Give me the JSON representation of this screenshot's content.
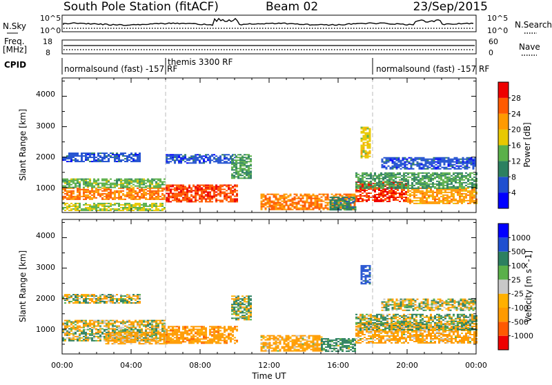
{
  "header": {
    "station": "South Pole Station (fitACF)",
    "beam": "Beam 02",
    "date": "23/Sep/2015"
  },
  "summary": {
    "nsky_label": "N.Sky",
    "nsky_ticks": [
      "10^5",
      "10^0"
    ],
    "nsearch_label": "N.Search",
    "nsearch_ticks": [
      "10^5",
      "10^0"
    ],
    "freq_label": "Freq.",
    "freq_unit": "[MHz]",
    "freq_ticks": [
      "18",
      "8"
    ],
    "nave_label": "Nave",
    "nave_ticks": [
      "60",
      "0"
    ],
    "cpid_label": "CPID",
    "cpid_segments": [
      {
        "label": "normalsound (fast) -157 RF",
        "start": 0,
        "end": 6
      },
      {
        "label": "themis 3300 RF",
        "start": 6,
        "end": 18
      },
      {
        "label": "normalsound (fast) -157 RF",
        "start": 18,
        "end": 24
      }
    ]
  },
  "x_axis": {
    "title": "Time UT",
    "ticks": [
      "00:00",
      "04:00",
      "08:00",
      "12:00",
      "16:00",
      "20:00",
      "00:00"
    ]
  },
  "panels": {
    "power": {
      "ylabel": "Slant Range [km]",
      "yticks": [
        "4000",
        "3000",
        "2000",
        "1000"
      ],
      "colorbar_label": "Power [dB]",
      "colorbar_ticks": [
        "28",
        "24",
        "20",
        "16",
        "12",
        "8",
        "4"
      ]
    },
    "velocity": {
      "ylabel": "Slant Range [km]",
      "yticks": [
        "4000",
        "3000",
        "2000",
        "1000"
      ],
      "colorbar_label": "Velocity [m s^-1]",
      "colorbar_ticks": [
        "1000",
        "500",
        "100",
        "25",
        "-25",
        "-100",
        "-500",
        "-1000"
      ]
    }
  },
  "chart_data": [
    {
      "type": "heatmap",
      "title": "South Pole Station (fitACF)  Beam 02  23/Sep/2015",
      "xlabel": "Time UT",
      "ylabel": "Slant Range [km]",
      "xlim": [
        0,
        24
      ],
      "ylim": [
        180,
        4600
      ],
      "colorbar": {
        "label": "Power [dB]",
        "ticks": [
          4,
          8,
          12,
          16,
          20,
          24,
          28
        ],
        "bins": [
          {
            "min": 0,
            "max": 4,
            "color": "#0000ff"
          },
          {
            "min": 4,
            "max": 8,
            "color": "#1f4fd0"
          },
          {
            "min": 8,
            "max": 12,
            "color": "#2c8060"
          },
          {
            "min": 12,
            "max": 16,
            "color": "#5ab04a"
          },
          {
            "min": 16,
            "max": 20,
            "color": "#e8c800"
          },
          {
            "min": 20,
            "max": 24,
            "color": "#ff9a00"
          },
          {
            "min": 24,
            "max": 28,
            "color": "#ff5a00"
          },
          {
            "min": 28,
            "max": 32,
            "color": "#ee0000"
          }
        ]
      },
      "regions": [
        {
          "t0": 0.0,
          "t1": 6.0,
          "r0": 600,
          "r1": 1000,
          "value": 24
        },
        {
          "t0": 0.0,
          "t1": 6.0,
          "r0": 1000,
          "r1": 1300,
          "value": 14
        },
        {
          "t0": 0.0,
          "t1": 4.5,
          "r0": 1850,
          "r1": 2150,
          "value": 6
        },
        {
          "t0": 0.0,
          "t1": 6.0,
          "r0": 250,
          "r1": 500,
          "value": 16
        },
        {
          "t0": 6.0,
          "t1": 10.2,
          "r0": 550,
          "r1": 1100,
          "value": 27
        },
        {
          "t0": 6.0,
          "t1": 10.0,
          "r0": 1800,
          "r1": 2100,
          "value": 6
        },
        {
          "t0": 9.8,
          "t1": 11.0,
          "r0": 1300,
          "r1": 2100,
          "value": 12
        },
        {
          "t0": 11.5,
          "t1": 17.0,
          "r0": 300,
          "r1": 800,
          "value": 24
        },
        {
          "t0": 15.5,
          "t1": 17.0,
          "r0": 250,
          "r1": 700,
          "value": 10
        },
        {
          "t0": 17.0,
          "t1": 20.0,
          "r0": 550,
          "r1": 1200,
          "value": 28
        },
        {
          "t0": 20.0,
          "t1": 24.0,
          "r0": 500,
          "r1": 1000,
          "value": 22
        },
        {
          "t0": 17.0,
          "t1": 24.0,
          "r0": 1000,
          "r1": 1500,
          "value": 12
        },
        {
          "t0": 18.5,
          "t1": 24.0,
          "r0": 1600,
          "r1": 2000,
          "value": 6
        },
        {
          "t0": 17.3,
          "t1": 17.9,
          "r0": 2000,
          "r1": 3000,
          "value": 18
        }
      ]
    },
    {
      "type": "heatmap",
      "title": "South Pole Station (fitACF)  Beam 02  23/Sep/2015",
      "xlabel": "Time UT",
      "ylabel": "Slant Range [km]",
      "xlim": [
        0,
        24
      ],
      "ylim": [
        180,
        4600
      ],
      "colorbar": {
        "label": "Velocity [m s^-1]",
        "ticks": [
          -1000,
          -500,
          -100,
          -25,
          25,
          100,
          500,
          1000
        ],
        "bins": [
          {
            "min": -1500,
            "max": -1000,
            "color": "#ee0000"
          },
          {
            "min": -1000,
            "max": -500,
            "color": "#ff5a00"
          },
          {
            "min": -500,
            "max": -100,
            "color": "#ff9a00"
          },
          {
            "min": -100,
            "max": -25,
            "color": "#ffb000"
          },
          {
            "min": -25,
            "max": 25,
            "color": "#c8c8c8"
          },
          {
            "min": 25,
            "max": 100,
            "color": "#5ab04a"
          },
          {
            "min": 100,
            "max": 500,
            "color": "#2c8060"
          },
          {
            "min": 500,
            "max": 1000,
            "color": "#1f4fd0"
          },
          {
            "min": 1000,
            "max": 1500,
            "color": "#0000ff"
          }
        ]
      },
      "regions": [
        {
          "t0": 0.0,
          "t1": 6.0,
          "r0": 600,
          "r1": 1000,
          "value": 60
        },
        {
          "t0": 0.0,
          "t1": 6.0,
          "r0": 1000,
          "r1": 1300,
          "value": -80
        },
        {
          "t0": 0.0,
          "t1": 4.5,
          "r0": 1850,
          "r1": 2150,
          "value": 0
        },
        {
          "t0": 2.5,
          "t1": 6.0,
          "r0": 500,
          "r1": 900,
          "value": -200
        },
        {
          "t0": 6.0,
          "t1": 10.2,
          "r0": 550,
          "r1": 1100,
          "value": -300
        },
        {
          "t0": 9.8,
          "t1": 11.0,
          "r0": 1300,
          "r1": 2100,
          "value": 60
        },
        {
          "t0": 11.5,
          "t1": 15.0,
          "r0": 300,
          "r1": 800,
          "value": -200
        },
        {
          "t0": 15.0,
          "t1": 17.0,
          "r0": 250,
          "r1": 700,
          "value": 200
        },
        {
          "t0": 17.0,
          "t1": 24.0,
          "r0": 550,
          "r1": 1200,
          "value": -200
        },
        {
          "t0": 17.0,
          "t1": 24.0,
          "r0": 1000,
          "r1": 1500,
          "value": 60
        },
        {
          "t0": 18.5,
          "t1": 24.0,
          "r0": 1600,
          "r1": 2000,
          "value": 0
        },
        {
          "t0": 17.3,
          "t1": 17.9,
          "r0": 2500,
          "r1": 3100,
          "value": 700
        }
      ]
    }
  ]
}
